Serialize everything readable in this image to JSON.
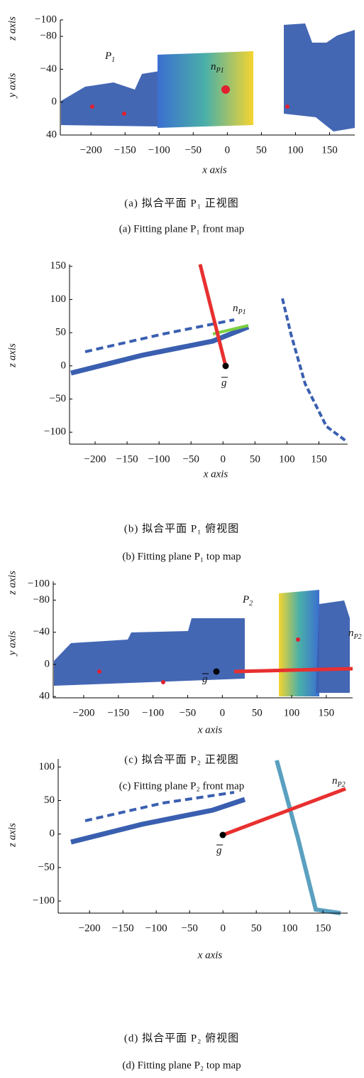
{
  "chart_data": [
    {
      "type": "scatter",
      "xlabel": "x axis",
      "ylabel": "y axis",
      "ylabel_top": "z axis",
      "xlim": [
        -245,
        187
      ],
      "ylim": [
        40,
        -100
      ],
      "xticks": [
        {
          "value": -200,
          "label": "−200"
        },
        {
          "value": -150,
          "label": "−150"
        },
        {
          "value": -100,
          "label": "−100"
        },
        {
          "value": -50,
          "label": "−50"
        },
        0,
        50,
        100,
        150
      ],
      "yticks": [
        {
          "value": -100,
          "label": "−100"
        },
        {
          "value": -80,
          "label": "−80"
        },
        {
          "value": -40,
          "label": "−40"
        },
        0,
        40
      ],
      "annotations": [
        {
          "base": "P",
          "sub": "1"
        },
        {
          "base": "n",
          "sub": "P1"
        }
      ],
      "caption_zh": "(a) 拟合平面 P₁ 正视图",
      "caption_en": "(a) Fitting plane P₁ front map"
    },
    {
      "type": "scatter",
      "xlabel": "x axis",
      "ylabel": "z axis",
      "xlim": [
        -240,
        195
      ],
      "ylim": [
        -118,
        153
      ],
      "xticks": [
        {
          "value": -200,
          "label": "−200"
        },
        {
          "value": -150,
          "label": "−150"
        },
        {
          "value": -100,
          "label": "−100"
        },
        {
          "value": -50,
          "label": "−50"
        },
        0,
        50,
        100,
        150
      ],
      "yticks": [
        150,
        100,
        50,
        0,
        {
          "value": -50,
          "label": "−50"
        },
        {
          "value": -100,
          "label": "−100"
        }
      ],
      "annotations": [
        {
          "base": "n",
          "sub": "P1"
        },
        {
          "base": "g"
        }
      ],
      "caption_zh": "(b) 拟合平面 P₁ 俯视图",
      "caption_en": "(b) Fitting plane P₁ top map"
    },
    {
      "type": "scatter",
      "xlabel": "x axis",
      "ylabel": "y axis",
      "ylabel_top": "z axis",
      "xlim": [
        -244,
        188
      ],
      "ylim": [
        41.6,
        -103.5
      ],
      "xticks": [
        {
          "value": -200,
          "label": "−200"
        },
        {
          "value": -150,
          "label": "−150"
        },
        {
          "value": -100,
          "label": "−100"
        },
        {
          "value": -50,
          "label": "−50"
        },
        0,
        50,
        100,
        150
      ],
      "yticks": [
        {
          "value": -100,
          "label": "−100"
        },
        {
          "value": -80,
          "label": "−80"
        },
        {
          "value": -40,
          "label": "−40"
        },
        0,
        40
      ],
      "annotations": [
        {
          "base": "P",
          "sub": "2"
        },
        {
          "base": "n",
          "sub": "P2"
        },
        {
          "base": "g"
        }
      ],
      "caption_zh": "(c) 拟合平面 P₂ 正视图",
      "caption_en": "(c) Fitting plane P₂ front map"
    },
    {
      "type": "scatter",
      "xlabel": "x axis",
      "ylabel": "z axis",
      "xlim": [
        -247,
        187
      ],
      "ylim": [
        -118,
        112
      ],
      "xticks": [
        {
          "value": -200,
          "label": "−200"
        },
        {
          "value": -150,
          "label": "−150"
        },
        {
          "value": -100,
          "label": "−100"
        },
        {
          "value": -50,
          "label": "−50"
        },
        0,
        50,
        100,
        150
      ],
      "yticks": [
        100,
        50,
        0,
        {
          "value": -50,
          "label": "−50"
        },
        {
          "value": -100,
          "label": "−100"
        }
      ],
      "annotations": [
        {
          "base": "n",
          "sub": "P2"
        },
        {
          "base": "g"
        }
      ],
      "caption_zh": "(d) 拟合平面 P₂ 俯视图",
      "caption_en": "(d) Fitting plane P₂ top map"
    }
  ]
}
